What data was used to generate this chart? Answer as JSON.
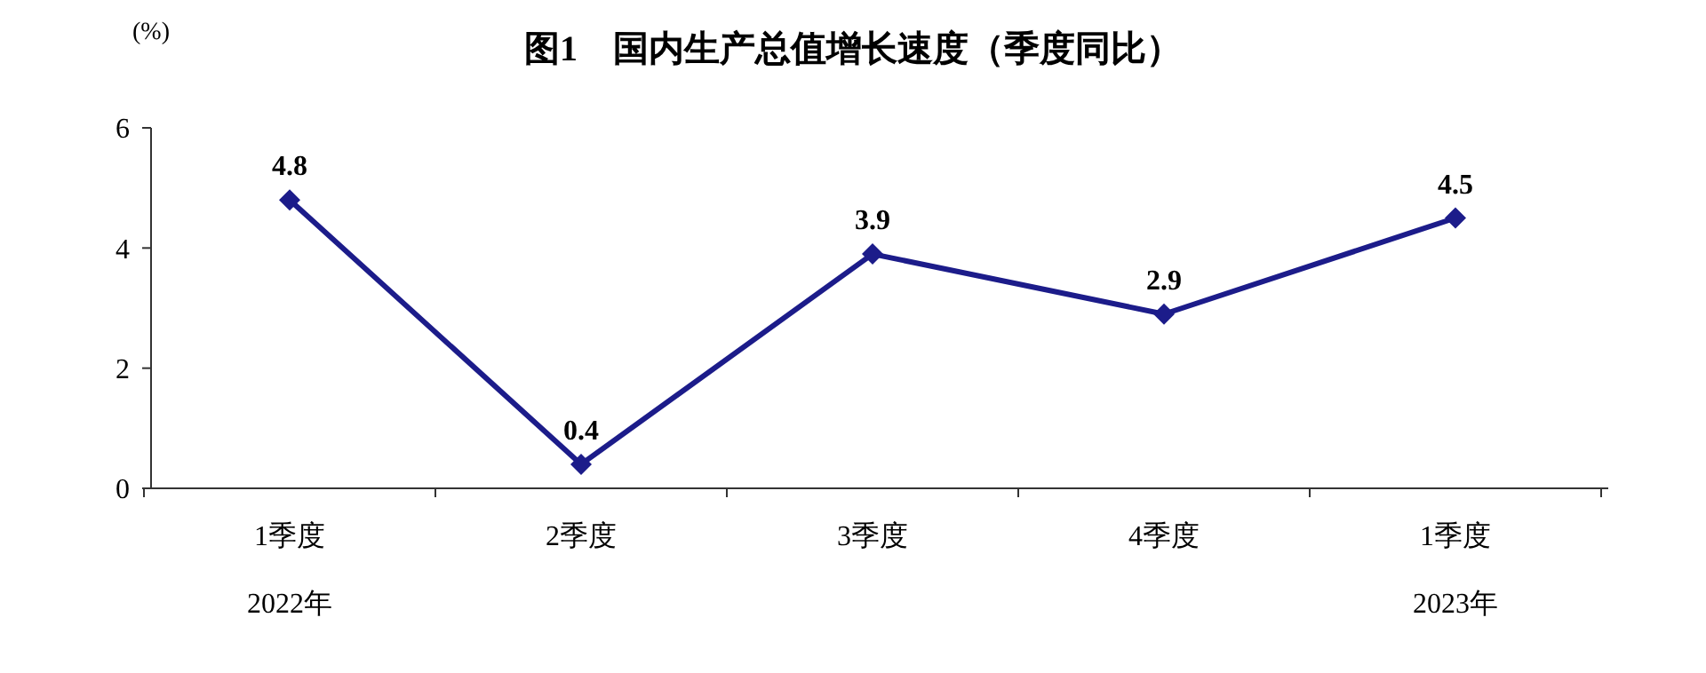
{
  "chart_data": {
    "type": "line",
    "title": "图1　国内生产总值增长速度（季度同比）",
    "ylabel": "(%)",
    "categories": [
      "1季度\n2022年",
      "2季度",
      "3季度",
      "4季度",
      "1季度\n2023年"
    ],
    "series": [
      {
        "color": "#1c1c8a",
        "values": [
          4.8,
          0.4,
          3.9,
          2.9,
          4.5
        ]
      }
    ],
    "ylim": [
      0,
      6
    ],
    "yticks": [
      0,
      2,
      4,
      6
    ],
    "grid": false,
    "marker": "diamond",
    "line_style": "solid",
    "data_labels": true
  }
}
